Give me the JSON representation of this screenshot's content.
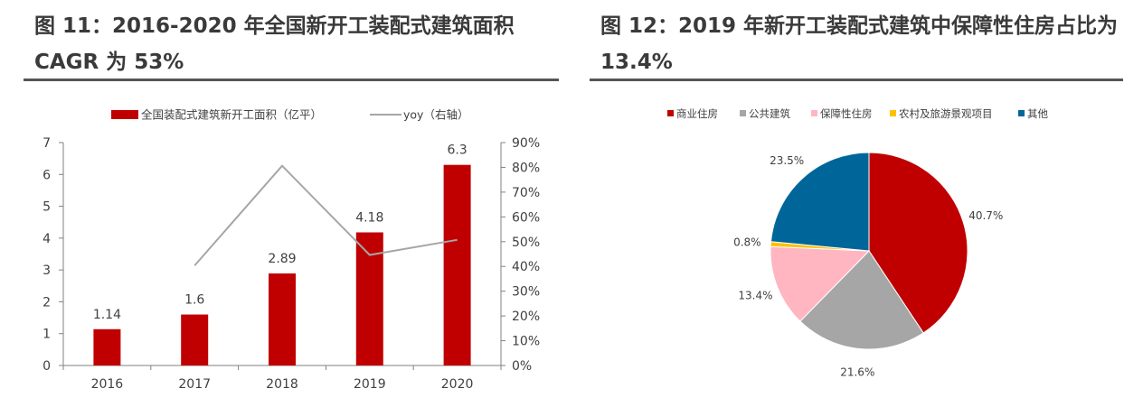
{
  "figures": [
    {
      "title_line1": "图 11：2016-2020 年全国新开工装配式建筑面积",
      "title_line2": "CAGR 为 53%"
    },
    {
      "title_line1": "图 12：2019 年新开工装配式建筑中保障性住房占比为",
      "title_line2": "13.4%"
    }
  ],
  "chart_data": [
    {
      "type": "bar",
      "categories": [
        "2016",
        "2017",
        "2018",
        "2019",
        "2020"
      ],
      "series": [
        {
          "name": "全国装配式建筑新开工面积（亿平）",
          "values": [
            1.14,
            1.6,
            2.89,
            4.18,
            6.3
          ],
          "data_labels": [
            "1.14",
            "1.6",
            "2.89",
            "4.18",
            "6.3"
          ],
          "color": "#C00000",
          "axis": "left"
        },
        {
          "name": "yoy（右轴）",
          "type": "line",
          "values": [
            null,
            40.35,
            80.63,
            44.64,
            50.72
          ],
          "color": "#A6A6A6",
          "axis": "right"
        }
      ],
      "ylim": [
        0,
        7
      ],
      "yticks": [
        "0",
        "1",
        "2",
        "3",
        "4",
        "5",
        "6",
        "7"
      ],
      "y2lim": [
        0,
        90
      ],
      "y2ticks": [
        "0%",
        "10%",
        "20%",
        "30%",
        "40%",
        "50%",
        "60%",
        "70%",
        "80%",
        "90%"
      ],
      "legend": "top",
      "grid": false
    },
    {
      "type": "pie",
      "categories": [
        "商业住房",
        "公共建筑",
        "保障性住房",
        "农村及旅游景观项目",
        "其他"
      ],
      "values": [
        40.7,
        21.6,
        13.4,
        0.8,
        23.5
      ],
      "labels": [
        "40.7%",
        "21.6%",
        "13.4%",
        "0.8%",
        "23.5%"
      ],
      "colors": [
        "#C00000",
        "#A6A6A6",
        "#FFB6C1",
        "#FFC000",
        "#006699"
      ],
      "legend": "top"
    }
  ]
}
